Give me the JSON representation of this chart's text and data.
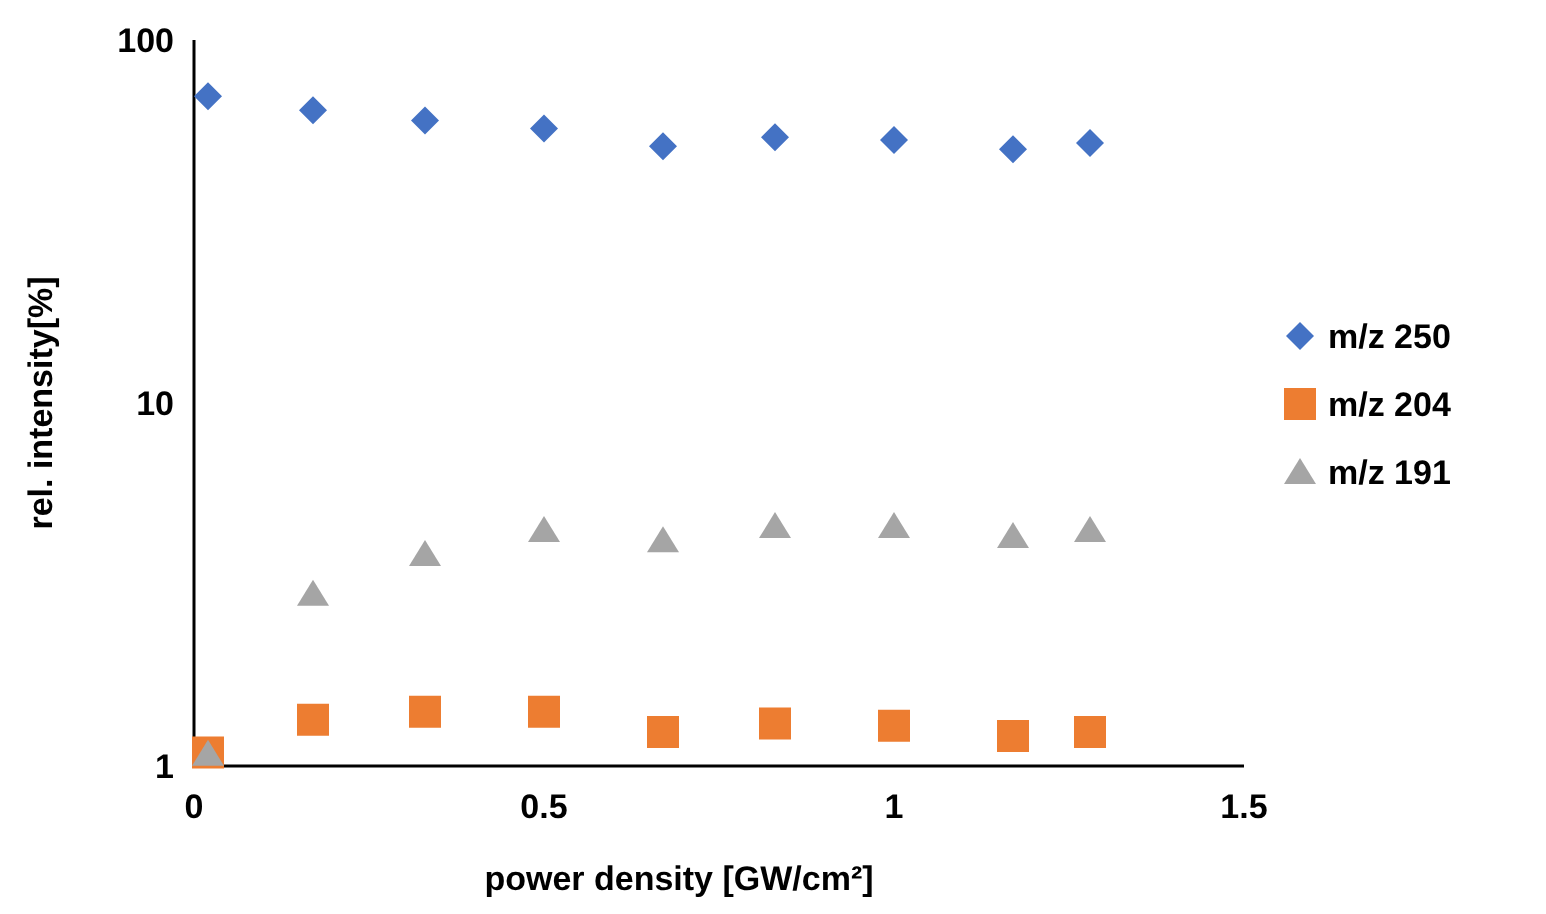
{
  "chart_data": {
    "type": "scatter",
    "xlabel": "power density [GW/cm²]",
    "ylabel": "rel. intensity[%]",
    "x": [
      0.02,
      0.17,
      0.33,
      0.5,
      0.67,
      0.83,
      1.0,
      1.17,
      1.28
    ],
    "series": [
      {
        "name": "m/z 250",
        "color": "#4472c4",
        "marker": "diamond",
        "values": [
          70,
          64,
          60,
          57,
          51,
          54,
          53,
          50,
          52
        ]
      },
      {
        "name": "m/z 204",
        "color": "#ed7d31",
        "marker": "square",
        "values": [
          1.09,
          1.34,
          1.41,
          1.41,
          1.24,
          1.31,
          1.29,
          1.21,
          1.24
        ]
      },
      {
        "name": "m/z 191",
        "color": "#a5a5a5",
        "marker": "triangle",
        "values": [
          1.08,
          2.98,
          3.84,
          4.47,
          4.19,
          4.58,
          4.58,
          4.3,
          4.47
        ]
      }
    ],
    "xlim": [
      0,
      1.5
    ],
    "xticks": [
      0,
      0.5,
      1,
      1.5
    ],
    "ylim": [
      1,
      100
    ],
    "yticks": [
      1,
      10,
      100
    ],
    "log": "y",
    "grid": false,
    "legend": "right"
  }
}
